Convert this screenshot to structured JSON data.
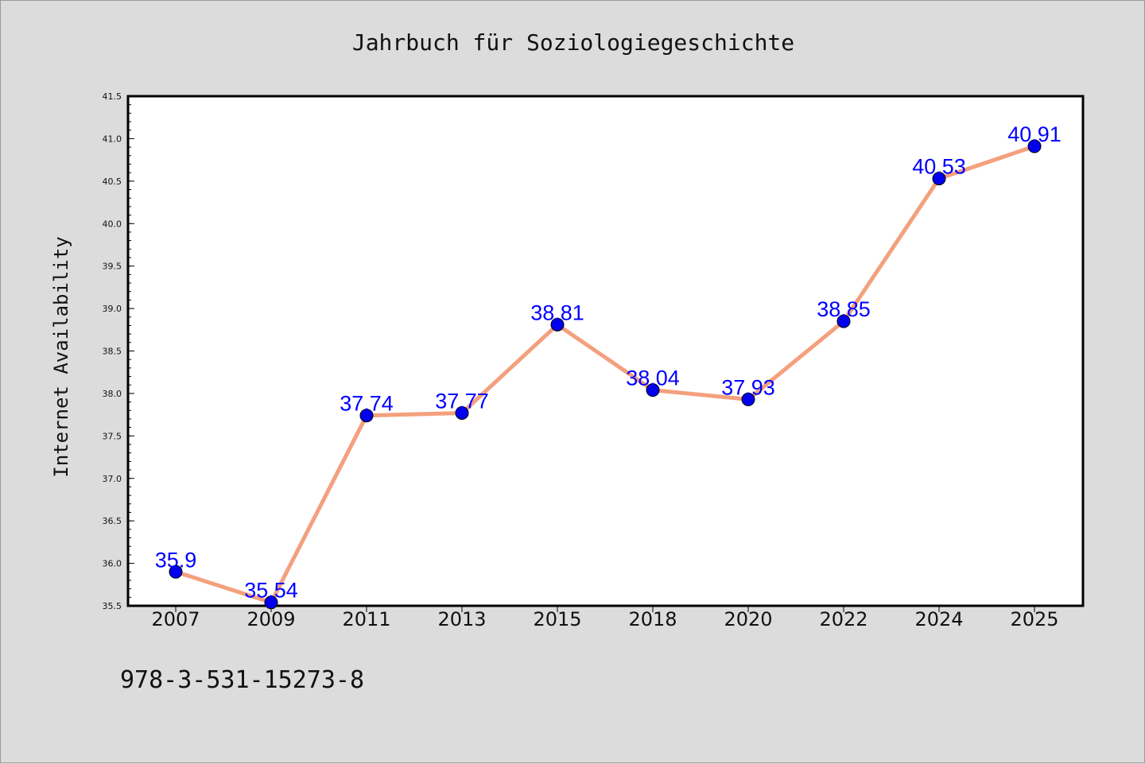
{
  "chart_data": {
    "type": "line",
    "title": "Jahrbuch für Soziologiegeschichte",
    "xlabel": "",
    "ylabel": "Internet Availability",
    "categories": [
      "2007",
      "2009",
      "2011",
      "2013",
      "2015",
      "2018",
      "2020",
      "2022",
      "2024",
      "2025"
    ],
    "series": [
      {
        "values": [
          35.9,
          35.54,
          37.74,
          37.77,
          38.81,
          38.04,
          37.93,
          38.85,
          40.53,
          40.91
        ],
        "data_labels": [
          "35.9",
          "35.54",
          "37.74",
          "37.77",
          "38.81",
          "38.04",
          "37.93",
          "38.85",
          "40.53",
          "40.91"
        ]
      }
    ],
    "ylim": [
      35.5,
      41.5
    ],
    "yticks": [
      "35.5",
      "36.0",
      "36.5",
      "37.0",
      "37.5",
      "38.0",
      "38.5",
      "39.0",
      "39.5",
      "40.0",
      "40.5",
      "41.0",
      "41.5"
    ],
    "grid": false,
    "line_color": "#f4a07e",
    "marker_color": "#0000ee",
    "label_color": "#0000ff",
    "plot_background": "#ffffff",
    "page_background": "#dcdcdc"
  },
  "caption": "978-3-531-15273-8"
}
